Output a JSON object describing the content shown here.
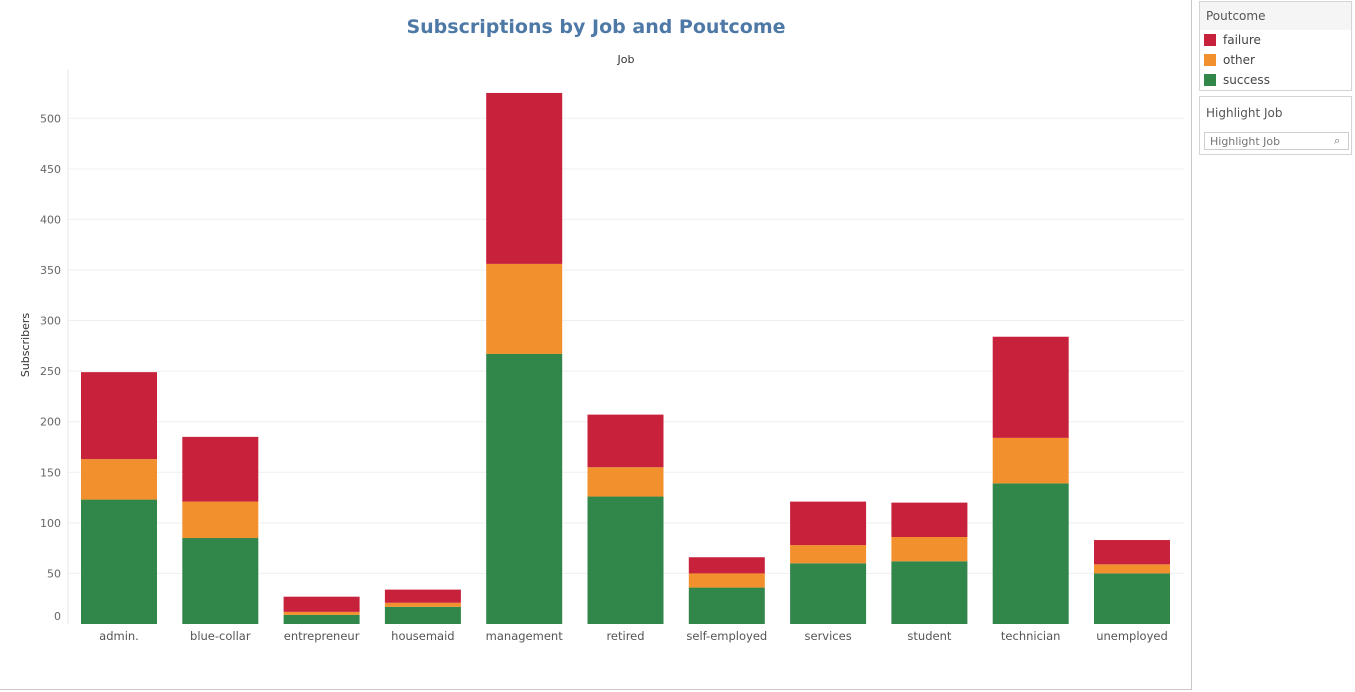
{
  "chart_data": {
    "type": "bar",
    "stacked": true,
    "title": "Subscriptions by Job and Poutcome",
    "column_header": "Job",
    "ylabel": "Subscribers",
    "ylim": [
      0,
      525
    ],
    "yticks": [
      0,
      50,
      100,
      150,
      200,
      250,
      300,
      350,
      400,
      450,
      500
    ],
    "categories": [
      "admin.",
      "blue-collar",
      "entrepreneur",
      "housemaid",
      "management",
      "retired",
      "self-employed",
      "services",
      "student",
      "technician",
      "unemployed"
    ],
    "series": [
      {
        "name": "success",
        "color": "#31864a",
        "values": [
          123,
          85,
          9,
          17,
          267,
          126,
          36,
          60,
          62,
          139,
          50
        ]
      },
      {
        "name": "other",
        "color": "#f2902e",
        "values": [
          40,
          36,
          3,
          4,
          89,
          29,
          14,
          18,
          24,
          45,
          9
        ]
      },
      {
        "name": "failure",
        "color": "#c8213b",
        "values": [
          86,
          64,
          15,
          13,
          169,
          52,
          16,
          43,
          34,
          100,
          24
        ]
      }
    ]
  },
  "legend": {
    "title": "Poutcome",
    "items": [
      {
        "label": "failure",
        "color": "#c8213b"
      },
      {
        "label": "other",
        "color": "#f2902e"
      },
      {
        "label": "success",
        "color": "#31864a"
      }
    ]
  },
  "highlight": {
    "title": "Highlight Job",
    "placeholder": "Highlight Job",
    "icon": "search-icon"
  }
}
